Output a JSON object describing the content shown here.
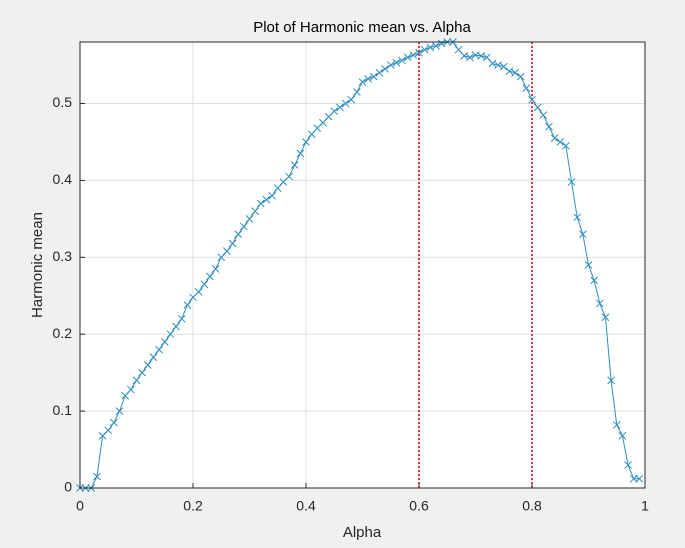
{
  "chart_data": {
    "type": "line",
    "title": "Plot of Harmonic mean vs. Alpha",
    "xlabel": "Alpha",
    "ylabel": "Harmonic mean",
    "x": [
      0,
      0.01,
      0.02,
      0.03,
      0.04,
      0.05,
      0.06,
      0.07,
      0.08,
      0.09,
      0.1,
      0.11,
      0.12,
      0.13,
      0.14,
      0.15,
      0.16,
      0.17,
      0.18,
      0.19,
      0.2,
      0.21,
      0.22,
      0.23,
      0.24,
      0.25,
      0.26,
      0.27,
      0.28,
      0.29,
      0.3,
      0.31,
      0.32,
      0.33,
      0.34,
      0.35,
      0.36,
      0.37,
      0.38,
      0.39,
      0.4,
      0.41,
      0.42,
      0.43,
      0.44,
      0.45,
      0.46,
      0.47,
      0.48,
      0.49,
      0.5,
      0.51,
      0.52,
      0.53,
      0.54,
      0.55,
      0.56,
      0.57,
      0.58,
      0.59,
      0.6,
      0.61,
      0.62,
      0.63,
      0.64,
      0.65,
      0.66,
      0.67,
      0.68,
      0.69,
      0.7,
      0.71,
      0.72,
      0.73,
      0.74,
      0.75,
      0.76,
      0.77,
      0.78,
      0.79,
      0.8,
      0.81,
      0.82,
      0.83,
      0.84,
      0.85,
      0.86,
      0.87,
      0.88,
      0.89,
      0.9,
      0.91,
      0.92,
      0.93,
      0.94,
      0.95,
      0.96,
      0.97,
      0.98,
      0.99
    ],
    "series": [
      {
        "color": "#2f8fbf",
        "values": [
          0,
          0,
          0,
          0.015,
          0.068,
          0.075,
          0.085,
          0.1,
          0.12,
          0.128,
          0.14,
          0.15,
          0.16,
          0.17,
          0.18,
          0.19,
          0.2,
          0.21,
          0.22,
          0.238,
          0.248,
          0.255,
          0.265,
          0.275,
          0.285,
          0.3,
          0.308,
          0.318,
          0.33,
          0.34,
          0.35,
          0.36,
          0.37,
          0.375,
          0.38,
          0.39,
          0.398,
          0.405,
          0.42,
          0.435,
          0.45,
          0.46,
          0.468,
          0.475,
          0.483,
          0.49,
          0.495,
          0.5,
          0.505,
          0.515,
          0.528,
          0.532,
          0.535,
          0.54,
          0.545,
          0.55,
          0.553,
          0.556,
          0.56,
          0.563,
          0.566,
          0.57,
          0.573,
          0.575,
          0.578,
          0.58,
          0.58,
          0.57,
          0.562,
          0.56,
          0.563,
          0.562,
          0.56,
          0.552,
          0.55,
          0.548,
          0.542,
          0.54,
          0.535,
          0.52,
          0.505,
          0.495,
          0.485,
          0.47,
          0.455,
          0.45,
          0.445,
          0.398,
          0.352,
          0.33,
          0.29,
          0.27,
          0.24,
          0.222,
          0.14,
          0.082,
          0.068,
          0.03,
          0.012,
          0.012
        ]
      }
    ],
    "vlines": {
      "x": [
        0.6,
        0.8
      ],
      "color": "#c00000"
    },
    "xlim": [
      0,
      1
    ],
    "ylim": [
      0,
      0.58
    ],
    "xticks": [
      0,
      0.2,
      0.4,
      0.6,
      0.8,
      1
    ],
    "yticks": [
      0,
      0.1,
      0.2,
      0.3,
      0.4,
      0.5
    ],
    "grid": true
  }
}
